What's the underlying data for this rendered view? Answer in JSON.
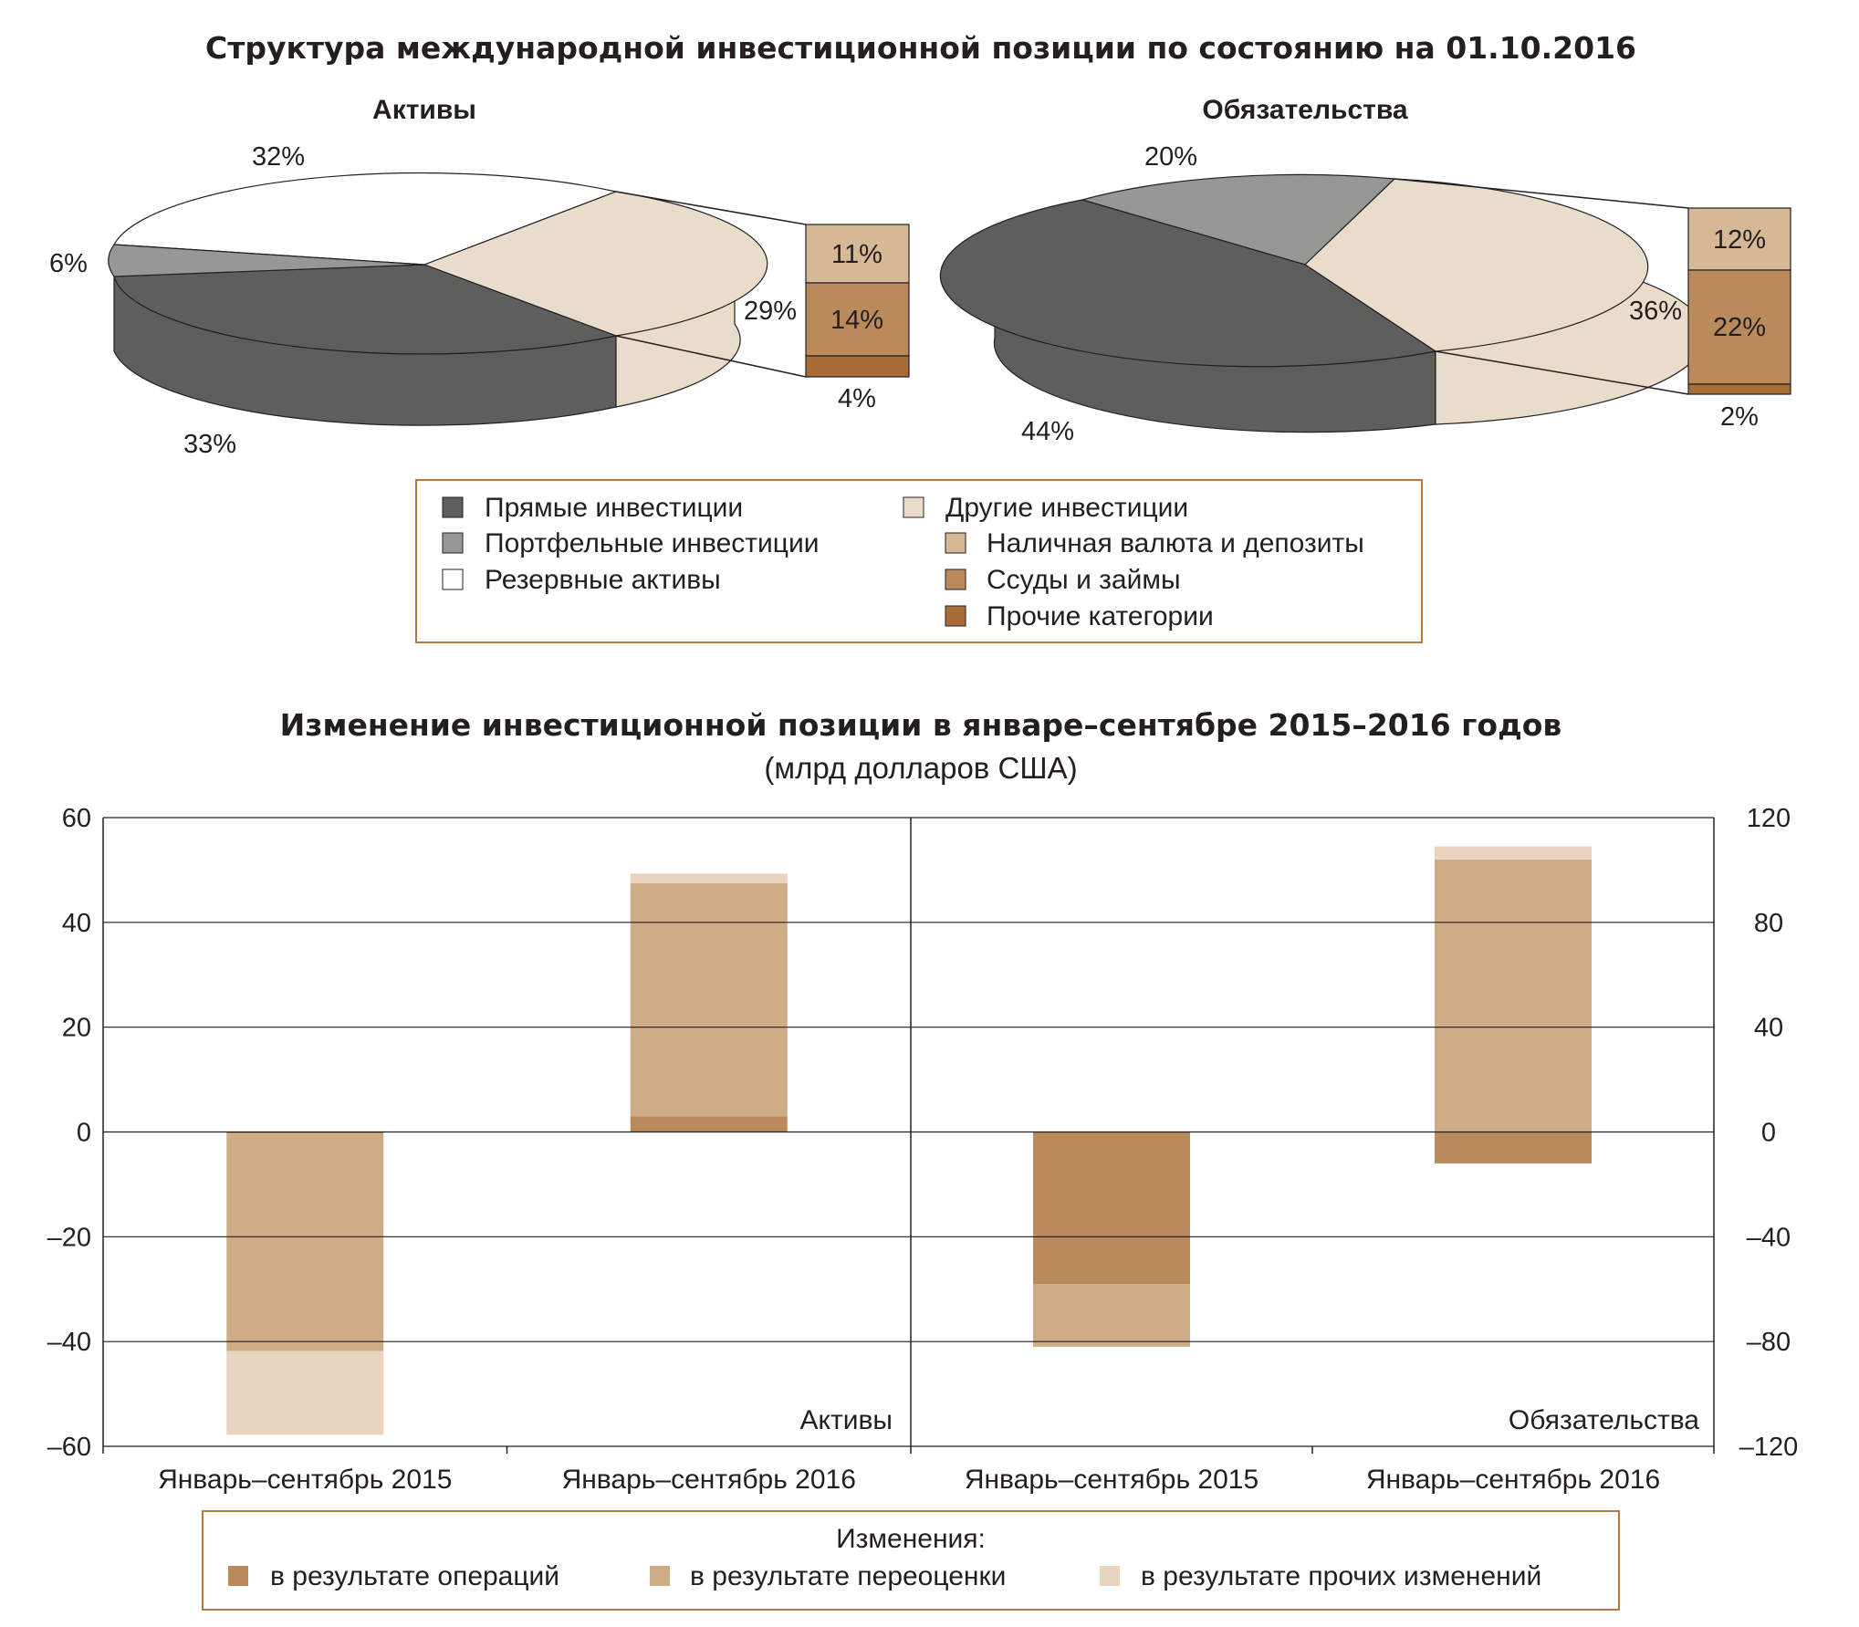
{
  "colors": {
    "direct": "#5e5f5d",
    "portfolio": "#969896",
    "reserve": "#ffffff",
    "other": "#e9dccb",
    "currency": "#d6b796",
    "loans": "#bb8a5a",
    "other_cat": "#a86d37",
    "frame": "#b07a48",
    "bar_ops": "#bb8a5a",
    "bar_reval": "#ceac86",
    "bar_other": "#e8d4bf",
    "grid": "#231f20"
  },
  "pie_section": {
    "title": "Структура международной инвестиционной позиции по состоянию на 01.10.2016",
    "assets": {
      "heading": "Активы",
      "labels": {
        "direct": "33%",
        "portfolio": "6%",
        "reserve": "32%",
        "other": "29%"
      },
      "breakdown": {
        "currency": "11%",
        "loans": "14%",
        "other_cat": "4%"
      }
    },
    "liabilities": {
      "heading": "Обязательства",
      "labels": {
        "direct": "44%",
        "portfolio": "20%",
        "other": "36%"
      },
      "breakdown": {
        "currency": "12%",
        "loans": "22%",
        "other_cat": "2%"
      }
    },
    "legend": {
      "direct": "Прямые инвестиции",
      "portfolio": "Портфельные инвестиции",
      "reserve": "Резервные активы",
      "other": "Другие инвестиции",
      "currency": "Наличная валюта и депозиты",
      "loans": "Ссуды и займы",
      "other_cat": "Прочие категории"
    }
  },
  "chart_data": [
    {
      "type": "pie",
      "title": "Активы",
      "slices": [
        {
          "name": "Прямые инвестиции",
          "value": 33
        },
        {
          "name": "Портфельные инвестиции",
          "value": 6
        },
        {
          "name": "Резервные активы",
          "value": 32
        },
        {
          "name": "Другие инвестиции",
          "value": 29
        }
      ],
      "breakdown_of": "Другие инвестиции",
      "breakdown": [
        {
          "name": "Наличная валюта и депозиты",
          "value": 11
        },
        {
          "name": "Ссуды и займы",
          "value": 14
        },
        {
          "name": "Прочие категории",
          "value": 4
        }
      ]
    },
    {
      "type": "pie",
      "title": "Обязательства",
      "slices": [
        {
          "name": "Прямые инвестиции",
          "value": 44
        },
        {
          "name": "Портфельные инвестиции",
          "value": 20
        },
        {
          "name": "Другие инвестиции",
          "value": 36
        }
      ],
      "breakdown_of": "Другие инвестиции",
      "breakdown": [
        {
          "name": "Наличная валюта и депозиты",
          "value": 12
        },
        {
          "name": "Ссуды и займы",
          "value": 22
        },
        {
          "name": "Прочие категории",
          "value": 2
        }
      ]
    },
    {
      "type": "bar",
      "stacked": true,
      "title": "Изменение инвестиционной позиции в январе–сентябре 2015–2016 годов",
      "subtitle": "(млрд долларов США)",
      "left_axis": {
        "ylim": [
          -60,
          60
        ],
        "ticks": [
          "60",
          "40",
          "20",
          "0",
          "–20",
          "–40",
          "–60"
        ]
      },
      "right_axis": {
        "ylim": [
          -120,
          120
        ],
        "ticks": [
          "120",
          "80",
          "40",
          "0",
          "–40",
          "–80",
          "–120"
        ]
      },
      "panels": [
        {
          "label": "Активы",
          "axis": "left",
          "categories": [
            "Январь–сентябрь 2015",
            "Январь–сентябрь 2016"
          ],
          "series": [
            {
              "name": "в результате операций",
              "values": [
                -0.3,
                3
              ]
            },
            {
              "name": "в результате переоценки",
              "values": [
                -41.5,
                44.5
              ]
            },
            {
              "name": "в результате прочих изменений",
              "values": [
                -16,
                1.8
              ]
            }
          ]
        },
        {
          "label": "Обязательства",
          "axis": "right",
          "categories": [
            "Январь–сентябрь 2015",
            "Январь–сентябрь 2016"
          ],
          "series": [
            {
              "name": "в результате операций",
              "values": [
                -58,
                -12
              ]
            },
            {
              "name": "в результате переоценки",
              "values": [
                -24,
                104
              ]
            },
            {
              "name": "в результате прочих изменений",
              "values": [
                0,
                5
              ]
            }
          ]
        }
      ],
      "legend": {
        "title": "Изменения:",
        "items": [
          "в результате операций",
          "в результате переоценки",
          "в результате прочих изменений"
        ]
      }
    }
  ]
}
